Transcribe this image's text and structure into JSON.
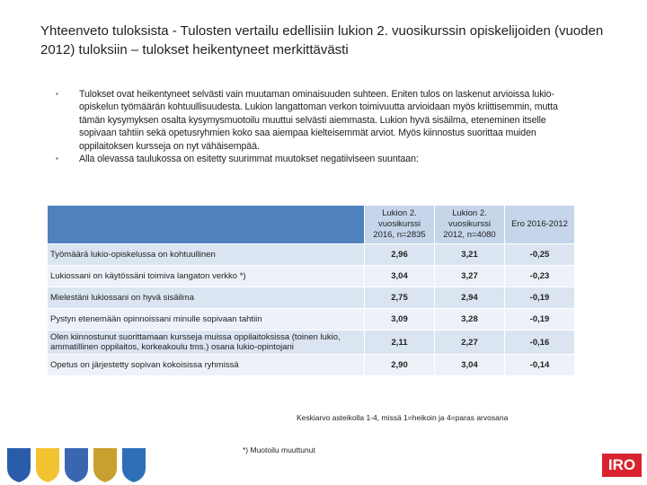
{
  "title": "Yhteenveto tuloksista - Tulosten vertailu edellisiin lukion 2. vuosikurssin opiskelijoiden (vuoden 2012) tuloksiin – tulokset heikentyneet merkittävästi",
  "bullets": [
    "Tulokset ovat heikentyneet selvästi vain muutaman ominaisuuden suhteen. Eniten tulos on laskenut arvioissa lukio-opiskelun työmäärän kohtuullisuudesta. Lukion langattoman verkon toimivuutta arvioidaan myös kriittisemmin, mutta tämän kysymyksen osalta kysymysmuotoilu muuttui selvästi aiemmasta. Lukion hyvä sisäilma, eteneminen itselle sopivaan tahtiin sekä opetusryhmien koko saa aiempaa kielteisemmät arviot. Myös kiinnostus suorittaa muiden oppilaitoksen kursseja on nyt vähäisempää.",
    "Alla olevassa taulukossa on esitetty suurimmat muutokset negatiiviseen suuntaan:"
  ],
  "table": {
    "header": [
      "Lukion 2. vuosikurssi 2016, n=2835",
      "Lukion 2. vuosikurssi 2012, n=4080",
      "Ero 2016-2012"
    ],
    "rows": [
      [
        "Työmäärä lukio-opiskelussa on kohtuullinen",
        "2,96",
        "3,21",
        "-0,25"
      ],
      [
        "Lukiossani on käytössäni toimiva langaton verkko *)",
        "3,04",
        "3,27",
        "-0,23"
      ],
      [
        "Mielestäni lukiossani on hyvä sisäilma",
        "2,75",
        "2,94",
        "-0,19"
      ],
      [
        "Pystyn etenemään opinnoissani minulle sopivaan tahtiin",
        "3,09",
        "3,28",
        "-0,19"
      ],
      [
        "Olen kiinnostunut suorittamaan kursseja muissa oppilaitoksissa (toinen lukio, ammatillinen oppilaitos, korkeakoulu tms.) osana lukio-opintojani",
        "2,11",
        "2,27",
        "-0,16"
      ],
      [
        "Opetus on järjestetty sopivan kokoisissa ryhmissä",
        "2,90",
        "3,04",
        "-0,14"
      ]
    ]
  },
  "scale_note": "Keskiarvo asteikolla 1-4, missä 1=heikoin ja 4=paras arvosana",
  "footnote": "*) Muotoilu muuttunut",
  "logo": "IRO"
}
